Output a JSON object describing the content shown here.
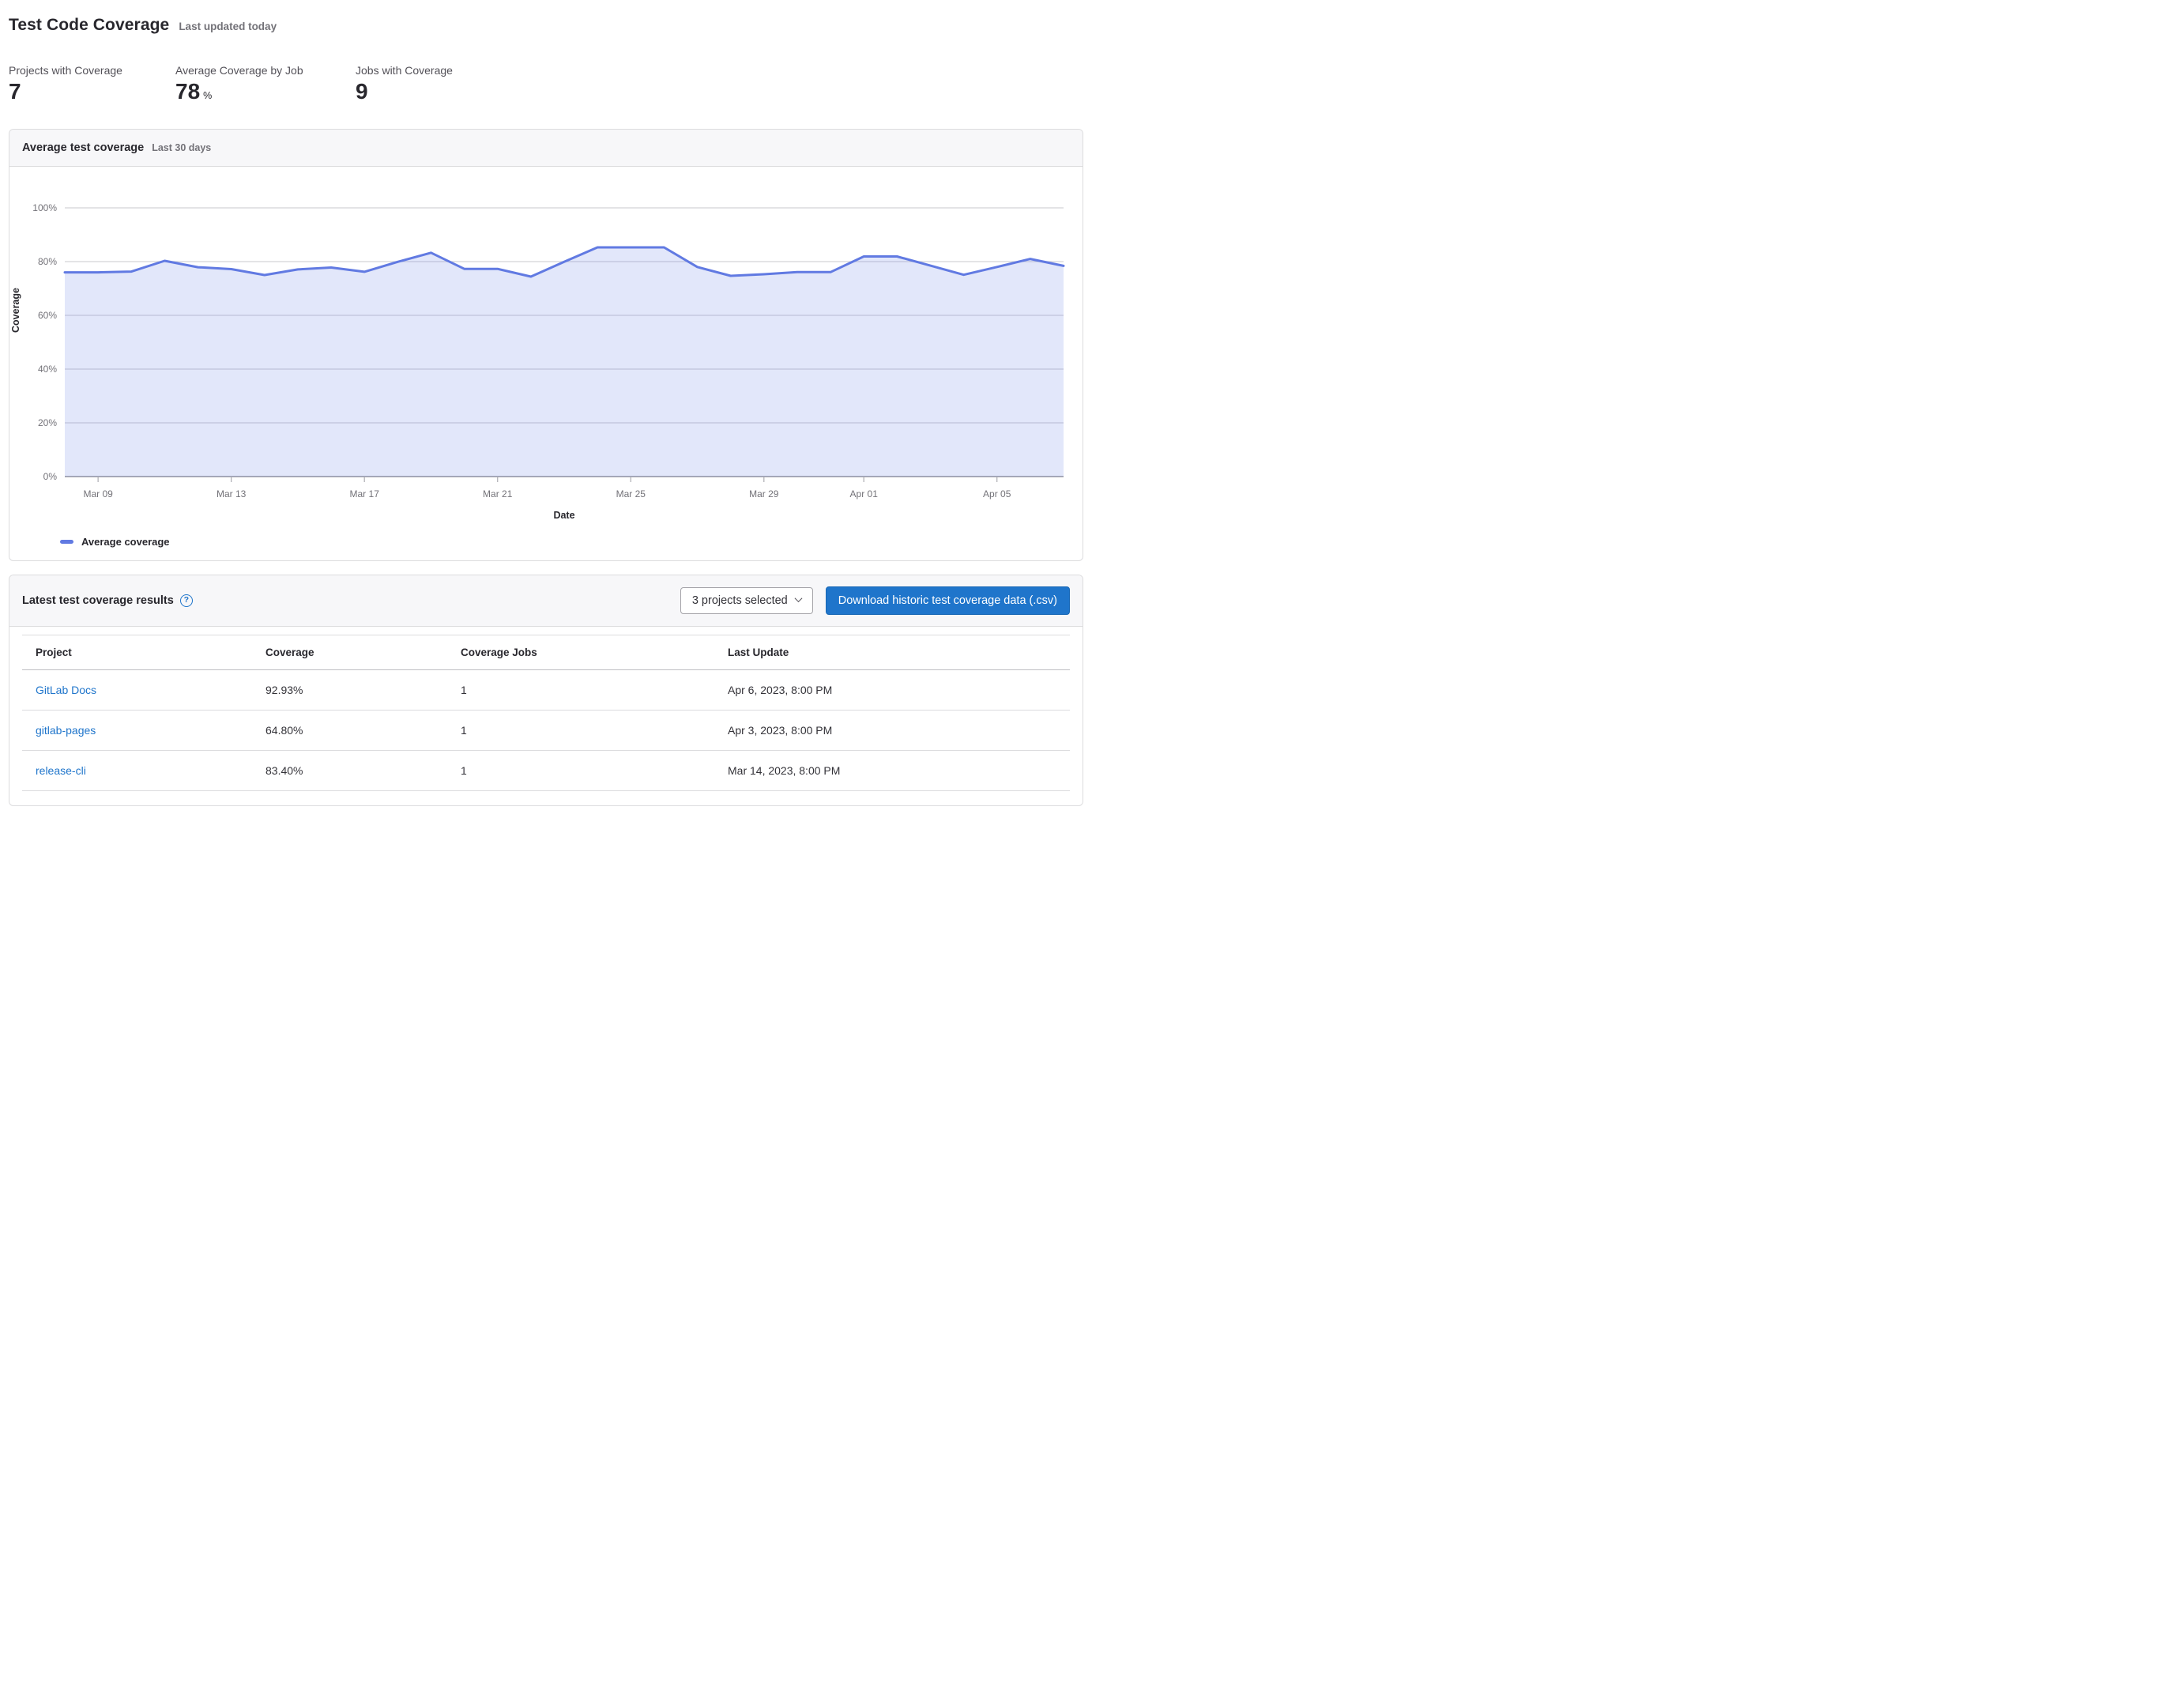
{
  "page": {
    "title": "Test Code Coverage",
    "subtitle": "Last updated today"
  },
  "stats": [
    {
      "label": "Projects with Coverage",
      "value": "7",
      "unit": ""
    },
    {
      "label": "Average Coverage by Job",
      "value": "78",
      "unit": "%"
    },
    {
      "label": "Jobs with Coverage",
      "value": "9",
      "unit": ""
    }
  ],
  "chart_card": {
    "title": "Average test coverage",
    "subtitle": "Last 30 days"
  },
  "chart_data": {
    "type": "area",
    "title": "Average test coverage",
    "xlabel": "Date",
    "ylabel": "Coverage",
    "ylim": [
      0,
      100
    ],
    "grid": true,
    "legend_position": "bottom-left",
    "legend": [
      {
        "label": "Average coverage",
        "color": "#617ae2"
      }
    ],
    "line_color": "#617ae2",
    "area_color": "rgba(97,122,226,0.18)",
    "yticks": [
      0,
      20,
      40,
      60,
      80,
      100
    ],
    "ytick_suffix": "%",
    "x": [
      "Mar 08",
      "Mar 09",
      "Mar 10",
      "Mar 11",
      "Mar 12",
      "Mar 13",
      "Mar 14",
      "Mar 15",
      "Mar 16",
      "Mar 17",
      "Mar 18",
      "Mar 19",
      "Mar 20",
      "Mar 21",
      "Mar 22",
      "Mar 23",
      "Mar 24",
      "Mar 25",
      "Mar 26",
      "Mar 27",
      "Mar 28",
      "Mar 29",
      "Mar 30",
      "Mar 31",
      "Apr 01",
      "Apr 02",
      "Apr 03",
      "Apr 04",
      "Apr 05",
      "Apr 06",
      "Apr 07"
    ],
    "series": [
      {
        "name": "Average coverage",
        "values": [
          76,
          76,
          76.3,
          80.3,
          77.9,
          77.2,
          75,
          77.1,
          77.8,
          76.2,
          79.9,
          83.3,
          77.3,
          77.3,
          74.4,
          79.9,
          85.3,
          85.3,
          85.3,
          78,
          74.7,
          75.3,
          76.1,
          76.1,
          81.9,
          81.9,
          78.5,
          75.1,
          78,
          81,
          78.4
        ]
      }
    ],
    "xtick_indices": [
      1,
      5,
      9,
      13,
      17,
      21,
      24,
      28
    ],
    "xtick_labels": [
      "Mar 09",
      "Mar 13",
      "Mar 17",
      "Mar 21",
      "Mar 25",
      "Mar 29",
      "Apr 01",
      "Apr 05"
    ]
  },
  "table_card": {
    "title": "Latest test coverage results",
    "dropdown_value": "3 projects selected",
    "download_button": "Download historic test coverage data (.csv)"
  },
  "table": {
    "columns": [
      "Project",
      "Coverage",
      "Coverage Jobs",
      "Last Update"
    ],
    "rows": [
      {
        "project": "GitLab Docs",
        "coverage": "92.93%",
        "jobs": "1",
        "last_update": "Apr 6, 2023, 8:00 PM"
      },
      {
        "project": "gitlab-pages",
        "coverage": "64.80%",
        "jobs": "1",
        "last_update": "Apr 3, 2023, 8:00 PM"
      },
      {
        "project": "release-cli",
        "coverage": "83.40%",
        "jobs": "1",
        "last_update": "Mar 14, 2023, 8:00 PM"
      }
    ]
  },
  "colors": {
    "accent_blue": "#1f75cb",
    "line_blue": "#617ae2",
    "text_dark": "#28272d",
    "text_gray": "#737278",
    "border": "#dcdcde"
  }
}
